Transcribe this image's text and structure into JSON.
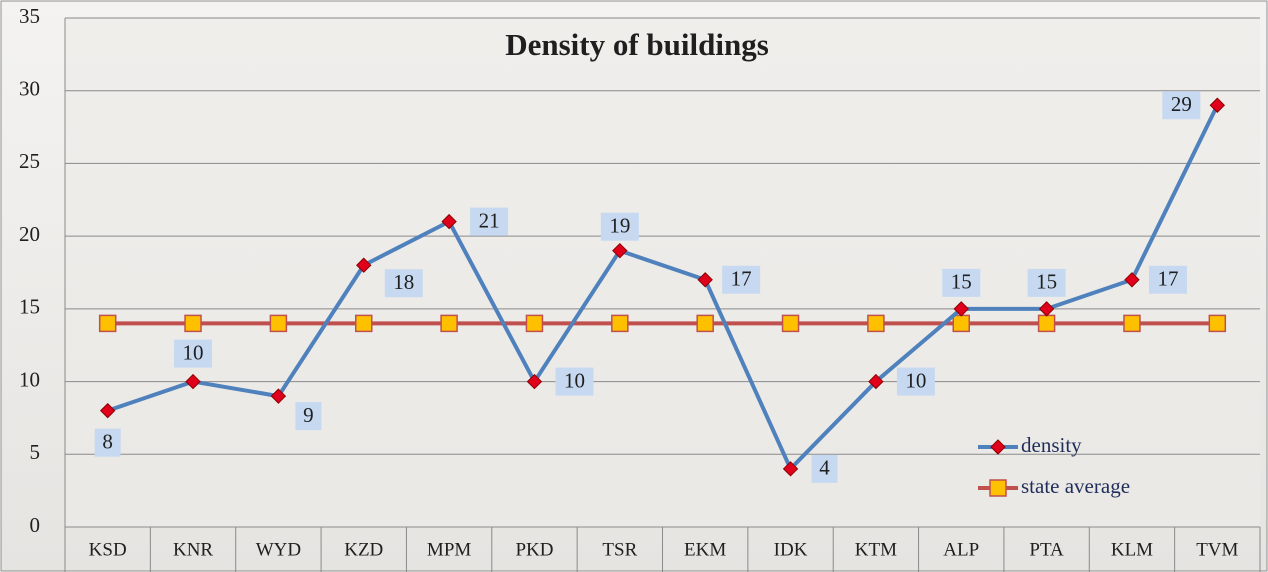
{
  "chart_data": {
    "type": "line",
    "title": "Density of buildings",
    "categories": [
      "KSD",
      "KNR",
      "WYD",
      "KZD",
      "MPM",
      "PKD",
      "TSR",
      "EKM",
      "IDK",
      "KTM",
      "ALP",
      "PTA",
      "KLM",
      "TVM"
    ],
    "series": [
      {
        "name": "density",
        "color": "#4f81bd",
        "marker": "diamond",
        "marker_color": "#e0001b",
        "values": [
          8,
          10,
          9,
          18,
          21,
          10,
          19,
          17,
          4,
          10,
          15,
          15,
          17,
          29
        ],
        "data_labels": true
      },
      {
        "name": "state average",
        "color": "#c0504d",
        "marker": "square",
        "marker_color": "#ffc000",
        "values": [
          14,
          14,
          14,
          14,
          14,
          14,
          14,
          14,
          14,
          14,
          14,
          14,
          14,
          14
        ],
        "data_labels": false
      }
    ],
    "ylim": [
      0,
      35
    ],
    "yticks": [
      0,
      5,
      10,
      15,
      20,
      25,
      30,
      35
    ],
    "grid": true,
    "legend": "lower right"
  }
}
